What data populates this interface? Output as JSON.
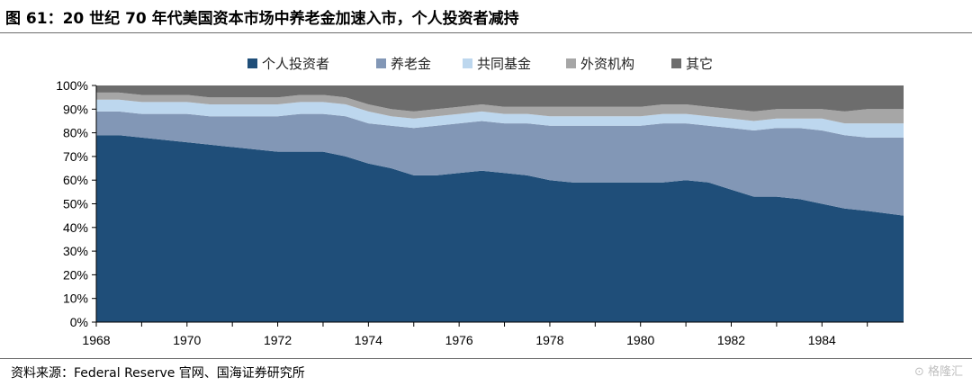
{
  "title": "图 61：20 世纪 70 年代美国资本市场中养老金加速入市，个人投资者减持",
  "source": "资料来源：Federal Reserve 官网、国海证券研究所",
  "watermark": "格隆汇",
  "chart_data": {
    "type": "area",
    "stacked": true,
    "title": "图 61：20 世纪 70 年代美国资本市场中养老金加速入市，个人投资者减持",
    "xlabel": "",
    "ylabel": "",
    "xlim": [
      1968,
      1985.8
    ],
    "ylim": [
      0,
      100
    ],
    "y_unit": "%",
    "x_ticks": [
      1968,
      1970,
      1972,
      1974,
      1976,
      1978,
      1980,
      1982,
      1984
    ],
    "y_ticks": [
      "0%",
      "10%",
      "20%",
      "30%",
      "40%",
      "50%",
      "60%",
      "70%",
      "80%",
      "90%",
      "100%"
    ],
    "legend_position": "top",
    "grid": false,
    "x": [
      1968,
      1968.5,
      1969,
      1969.5,
      1970,
      1970.5,
      1971,
      1971.5,
      1972,
      1972.5,
      1973,
      1973.5,
      1974,
      1974.5,
      1975,
      1975.5,
      1976,
      1976.5,
      1977,
      1977.5,
      1978,
      1978.5,
      1979,
      1979.5,
      1980,
      1980.5,
      1981,
      1981.5,
      1982,
      1982.5,
      1983,
      1983.5,
      1984,
      1984.5,
      1985,
      1985.8
    ],
    "series": [
      {
        "name": "个人投资者",
        "color": "#1f4e79",
        "values": [
          79,
          79,
          78,
          77,
          76,
          75,
          74,
          73,
          72,
          72,
          72,
          70,
          67,
          65,
          62,
          62,
          63,
          64,
          63,
          62,
          60,
          59,
          59,
          59,
          59,
          59,
          60,
          59,
          56,
          53,
          53,
          52,
          50,
          48,
          47,
          45
        ]
      },
      {
        "name": "养老金",
        "color": "#8297b6",
        "values": [
          10,
          10,
          10,
          11,
          12,
          12,
          13,
          14,
          15,
          16,
          16,
          17,
          17,
          18,
          20,
          21,
          21,
          21,
          21,
          22,
          23,
          24,
          24,
          24,
          24,
          25,
          24,
          24,
          26,
          28,
          29,
          30,
          31,
          31,
          31,
          33
        ]
      },
      {
        "name": "共同基金",
        "color": "#bdd7ee",
        "values": [
          5,
          5,
          5,
          5,
          5,
          5,
          5,
          5,
          5,
          5,
          5,
          5,
          5,
          4,
          4,
          4,
          4,
          4,
          4,
          4,
          4,
          4,
          4,
          4,
          4,
          4,
          4,
          4,
          4,
          4,
          4,
          4,
          5,
          5,
          6,
          6
        ]
      },
      {
        "name": "外资机构",
        "color": "#a6a6a6",
        "values": [
          3,
          3,
          3,
          3,
          3,
          3,
          3,
          3,
          3,
          3,
          3,
          3,
          3,
          3,
          3,
          3,
          3,
          3,
          3,
          3,
          4,
          4,
          4,
          4,
          4,
          4,
          4,
          4,
          4,
          4,
          4,
          4,
          4,
          5,
          6,
          6
        ]
      },
      {
        "name": "其它",
        "color": "#6d6d6d",
        "values": [
          3,
          3,
          4,
          4,
          4,
          5,
          5,
          5,
          5,
          4,
          4,
          5,
          8,
          10,
          11,
          10,
          9,
          8,
          9,
          9,
          9,
          9,
          9,
          9,
          9,
          8,
          8,
          9,
          10,
          11,
          10,
          10,
          10,
          11,
          10,
          10
        ]
      }
    ]
  }
}
